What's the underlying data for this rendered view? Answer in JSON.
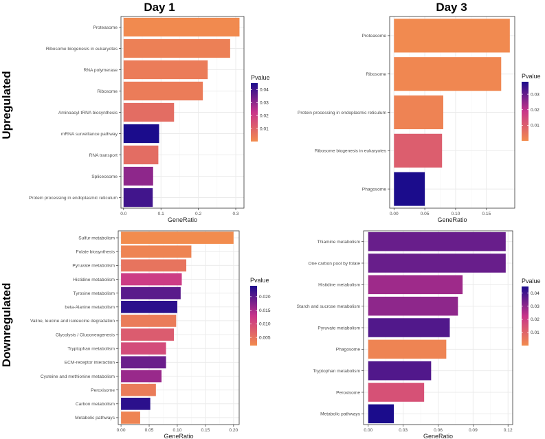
{
  "header": {
    "day1": "Day 1",
    "day3": "Day 3",
    "upregulated": "Upregulated",
    "downregulated": "Downregulated"
  },
  "colors": {
    "low_pvalue": "#F28C4E",
    "mid_pvalue": "#C8348A",
    "high_pvalue": "#1B0C8C",
    "grid": "#ebebeb",
    "panel_border": "#333333"
  },
  "chart_data": [
    {
      "id": "up-day1",
      "type": "bar",
      "orientation": "horizontal",
      "categories": [
        "Proteasome",
        "Ribosome biogenesis in eukaryotes",
        "RNA polymerase",
        "Ribosome",
        "Aminoacyl-tRNA biosynthesis",
        "mRNA surveillance pathway",
        "RNA transport",
        "Spliceosome",
        "Protein processing in endoplasmic reticulum"
      ],
      "values": [
        0.31,
        0.285,
        0.225,
        0.212,
        0.135,
        0.095,
        0.093,
        0.079,
        0.078
      ],
      "pvalues": [
        0.0005,
        0.003,
        0.004,
        0.004,
        0.008,
        0.045,
        0.008,
        0.03,
        0.04
      ],
      "xlabel": "GeneRatio",
      "xlim": [
        -0.007,
        0.322
      ],
      "xticks": [
        0.0,
        0.1,
        0.2,
        0.3
      ],
      "xtick_labels": [
        "0.0",
        "0.1",
        "0.2",
        "0.3"
      ],
      "legend": {
        "title": "Pvalue",
        "min": 0.0,
        "max": 0.045,
        "ticks": [
          0.04,
          0.03,
          0.02,
          0.01
        ],
        "tick_labels": [
          "0.04",
          "0.03",
          "0.02",
          "0.01"
        ]
      }
    },
    {
      "id": "up-day3",
      "type": "bar",
      "orientation": "horizontal",
      "categories": [
        "Proteasome",
        "Ribosome",
        "Protein processing in endoplasmic reticulum",
        "Ribosome biogenesis in eukaryotes",
        "Phagosome"
      ],
      "values": [
        0.188,
        0.174,
        0.08,
        0.078,
        0.05
      ],
      "pvalues": [
        0.0005,
        0.001,
        0.002,
        0.01,
        0.038
      ],
      "xlabel": "GeneRatio",
      "xlim": [
        -0.007,
        0.196
      ],
      "xticks": [
        0.0,
        0.05,
        0.1,
        0.15
      ],
      "xtick_labels": [
        "0.00",
        "0.05",
        "0.10",
        "0.15"
      ],
      "legend": {
        "title": "Pvalue",
        "min": 0.0,
        "max": 0.038,
        "ticks": [
          0.03,
          0.02,
          0.01
        ],
        "tick_labels": [
          "0.03",
          "0.02",
          "0.01"
        ]
      }
    },
    {
      "id": "down-day1",
      "type": "bar",
      "orientation": "horizontal",
      "categories": [
        "Sulfur metabolism",
        "Folate biosynthesis",
        "Pyruvate metabolism",
        "Histidine metabolism",
        "Tyrosine metabolism",
        "beta-Alanine metabolism",
        "Valine, leucine and isoleucine degradation",
        "Glycolysis / Gluconeogenesis",
        "Tryptophan metabolism",
        "ECM-receptor interaction",
        "Cysteine and methionine metabolism",
        "Peroxisome",
        "Carbon metabolism",
        "Metabolic pathways"
      ],
      "values": [
        0.2,
        0.125,
        0.116,
        0.108,
        0.106,
        0.1,
        0.098,
        0.094,
        0.08,
        0.08,
        0.072,
        0.062,
        0.052,
        0.034
      ],
      "pvalues": [
        0.002,
        0.003,
        0.005,
        0.012,
        0.02,
        0.023,
        0.004,
        0.008,
        0.01,
        0.019,
        0.016,
        0.004,
        0.023,
        0.003
      ],
      "xlabel": "GeneRatio",
      "xlim": [
        -0.005,
        0.21
      ],
      "xticks": [
        0.0,
        0.05,
        0.1,
        0.15,
        0.2
      ],
      "xtick_labels": [
        "0.00",
        "0.05",
        "0.10",
        "0.15",
        "0.20"
      ],
      "legend": {
        "title": "Pvalue",
        "min": 0.002,
        "max": 0.024,
        "ticks": [
          0.02,
          0.015,
          0.01,
          0.005
        ],
        "tick_labels": [
          "0.020",
          "0.015",
          "0.010",
          "0.005"
        ]
      }
    },
    {
      "id": "down-day3",
      "type": "bar",
      "orientation": "horizontal",
      "categories": [
        "Thiamine metabolism",
        "One carbon pool by folate",
        "Histidine metabolism",
        "Starch and sucrose metabolism",
        "Pyruvate metabolism",
        "Phagosome",
        "Tryptophan metabolism",
        "Peroxisome",
        "Metabolic pathways"
      ],
      "values": [
        0.118,
        0.118,
        0.081,
        0.077,
        0.07,
        0.067,
        0.054,
        0.048,
        0.022
      ],
      "pvalues": [
        0.035,
        0.035,
        0.028,
        0.03,
        0.038,
        0.002,
        0.038,
        0.015,
        0.045
      ],
      "xlabel": "GeneRatio",
      "xlim": [
        -0.004,
        0.124
      ],
      "xticks": [
        0.0,
        0.03,
        0.06,
        0.09,
        0.12
      ],
      "xtick_labels": [
        "0.00",
        "0.03",
        "0.06",
        "0.09",
        "0.12"
      ],
      "legend": {
        "title": "Pvalue",
        "min": 0.0,
        "max": 0.045,
        "ticks": [
          0.04,
          0.03,
          0.02,
          0.01
        ],
        "tick_labels": [
          "0.04",
          "0.03",
          "0.02",
          "0.01"
        ]
      }
    }
  ]
}
